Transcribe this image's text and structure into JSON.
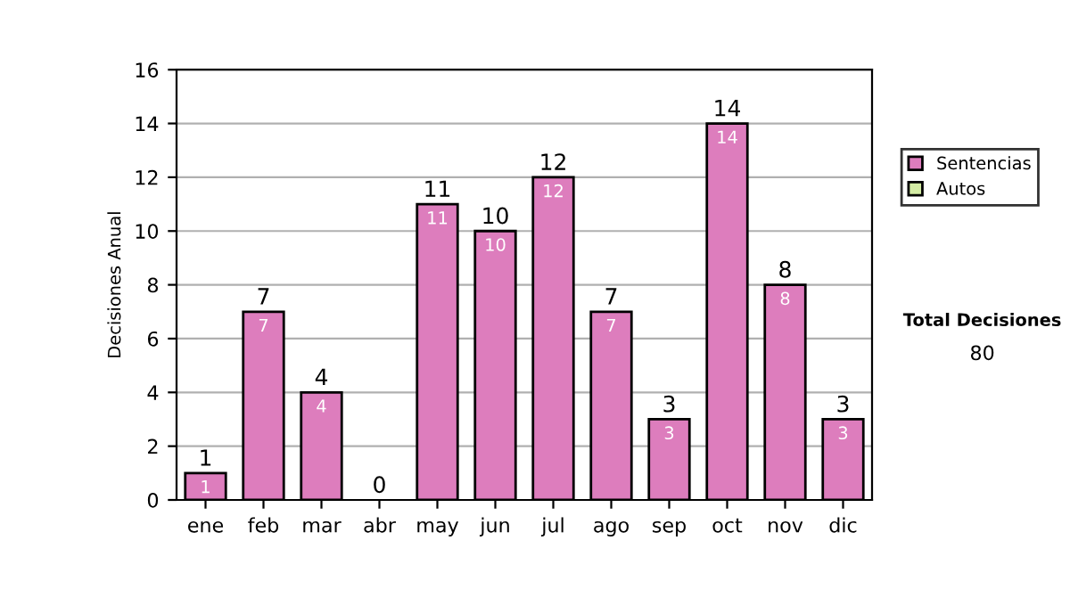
{
  "chart_data": {
    "type": "bar",
    "ylabel": "Decisiones Anual",
    "categories": [
      "ene",
      "feb",
      "mar",
      "abr",
      "may",
      "jun",
      "jul",
      "ago",
      "sep",
      "oct",
      "nov",
      "dic"
    ],
    "stacked": true,
    "series": [
      {
        "name": "Sentencias",
        "color": "#dd7dbd",
        "values": [
          1,
          7,
          4,
          0,
          11,
          10,
          12,
          7,
          3,
          14,
          8,
          3
        ],
        "value_labels": [
          "1",
          "7",
          "4",
          null,
          "11",
          "10",
          "12",
          "7",
          "3",
          "14",
          "8",
          "3"
        ]
      },
      {
        "name": "Autos",
        "color": "#d4eca4",
        "values": [
          0,
          0,
          0,
          0,
          0,
          0,
          0,
          0,
          0,
          0,
          0,
          0
        ]
      }
    ],
    "totals": [
      "1",
      "7",
      "4",
      "0",
      "11",
      "10",
      "12",
      "7",
      "3",
      "14",
      "8",
      "3"
    ],
    "ylim": [
      0,
      16
    ],
    "yticks": [
      0,
      2,
      4,
      6,
      8,
      10,
      12,
      14,
      16
    ],
    "grid": "y",
    "legend": "right",
    "annotations": [
      "Total Decisiones",
      "80"
    ]
  }
}
